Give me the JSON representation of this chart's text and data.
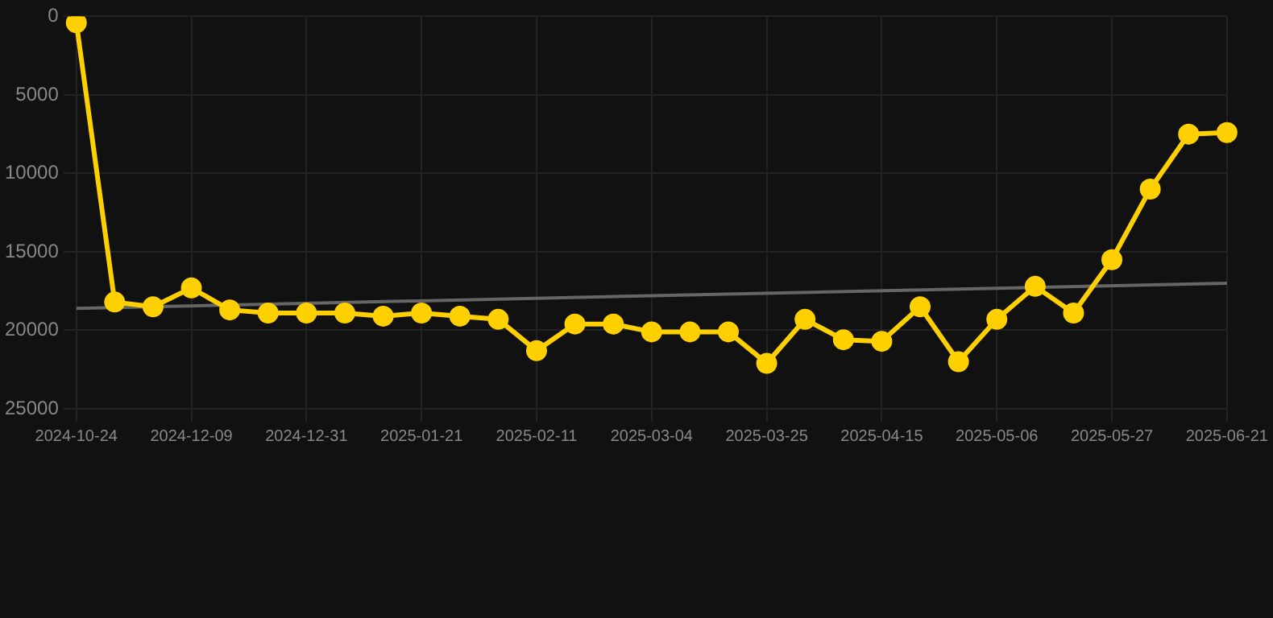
{
  "chart_data": {
    "type": "line",
    "categories": [
      "2024-10-24",
      null,
      null,
      "2024-12-09",
      null,
      null,
      "2024-12-31",
      null,
      null,
      "2025-01-21",
      null,
      null,
      "2025-02-11",
      null,
      null,
      "2025-03-04",
      null,
      null,
      "2025-03-25",
      null,
      null,
      "2025-04-15",
      null,
      null,
      "2025-05-06",
      null,
      null,
      "2025-05-27",
      null,
      null,
      "2025-06-21"
    ],
    "series": [
      {
        "type": "line",
        "color": "#ffd000",
        "marker": "circle",
        "values": [
          400,
          18200,
          18500,
          17300,
          18700,
          18900,
          18900,
          18900,
          19100,
          18900,
          19100,
          19300,
          21300,
          19600,
          19600,
          20100,
          20100,
          20100,
          22100,
          19300,
          20600,
          20700,
          18500,
          22000,
          19300,
          17200,
          18900,
          15500,
          11000,
          7500,
          7400
        ]
      },
      {
        "type": "line",
        "color": "#666666",
        "marker": "none",
        "values": [
          18600,
          null,
          null,
          null,
          null,
          null,
          null,
          null,
          null,
          null,
          null,
          null,
          null,
          null,
          null,
          null,
          null,
          null,
          null,
          null,
          null,
          null,
          null,
          null,
          null,
          null,
          null,
          null,
          null,
          null,
          17000
        ]
      }
    ],
    "ylim": [
      25000,
      0
    ],
    "yticks": [
      0,
      5000,
      10000,
      15000,
      20000,
      25000
    ],
    "grid": true,
    "legend": false
  }
}
